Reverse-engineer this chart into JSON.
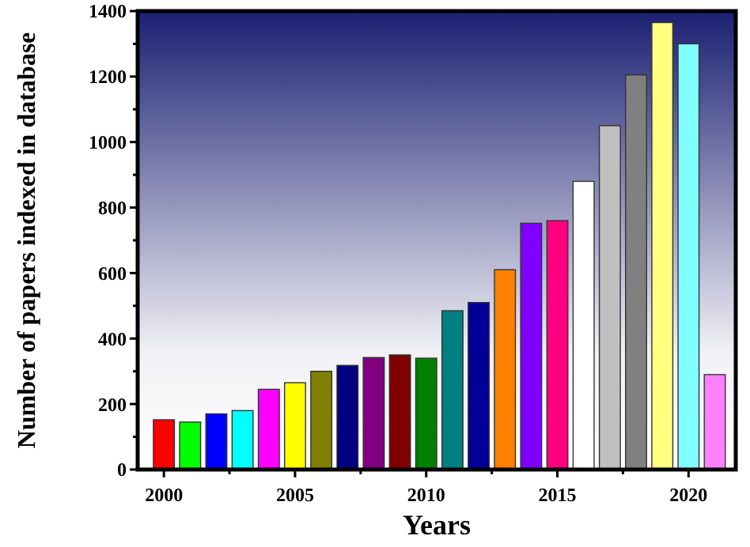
{
  "chart_data": {
    "type": "bar",
    "xlabel": "Years",
    "ylabel": "Number of papers indexed in database",
    "x": [
      2000,
      2001,
      2002,
      2003,
      2004,
      2005,
      2006,
      2007,
      2008,
      2009,
      2010,
      2011,
      2012,
      2013,
      2014,
      2015,
      2016,
      2017,
      2018,
      2019,
      2020,
      2021
    ],
    "values": [
      152,
      145,
      170,
      180,
      245,
      265,
      300,
      318,
      342,
      350,
      340,
      485,
      510,
      610,
      752,
      760,
      880,
      1050,
      1205,
      1365,
      1300,
      290
    ],
    "colors": [
      "#ff0000",
      "#00ff00",
      "#0000ff",
      "#00ffff",
      "#ff00ff",
      "#ffff00",
      "#808000",
      "#000080",
      "#800080",
      "#800000",
      "#008000",
      "#008080",
      "#000099",
      "#ff8000",
      "#8000ff",
      "#ff0080",
      "#ffffff",
      "#c0c0c0",
      "#808080",
      "#ffff80",
      "#80ffff",
      "#ff80ff"
    ],
    "xlim": [
      1999,
      2021.8
    ],
    "xticks": [
      2000,
      {
        "value": 2002.5,
        "label": null
      },
      2005,
      {
        "value": 2007.5,
        "label": null
      },
      2010,
      {
        "value": 2012.5,
        "label": null
      },
      2015,
      {
        "value": 2017.5,
        "label": null
      },
      2020
    ],
    "ylim": [
      0,
      1400
    ],
    "yticks": [
      0,
      {
        "value": 100,
        "label": null
      },
      200,
      {
        "value": 300,
        "label": null
      },
      400,
      {
        "value": 500,
        "label": null
      },
      600,
      {
        "value": 700,
        "label": null
      },
      800,
      {
        "value": 900,
        "label": null
      },
      1000,
      {
        "value": 1100,
        "label": null
      },
      1200,
      {
        "value": 1300,
        "label": null
      },
      1400
    ],
    "grid": false
  }
}
